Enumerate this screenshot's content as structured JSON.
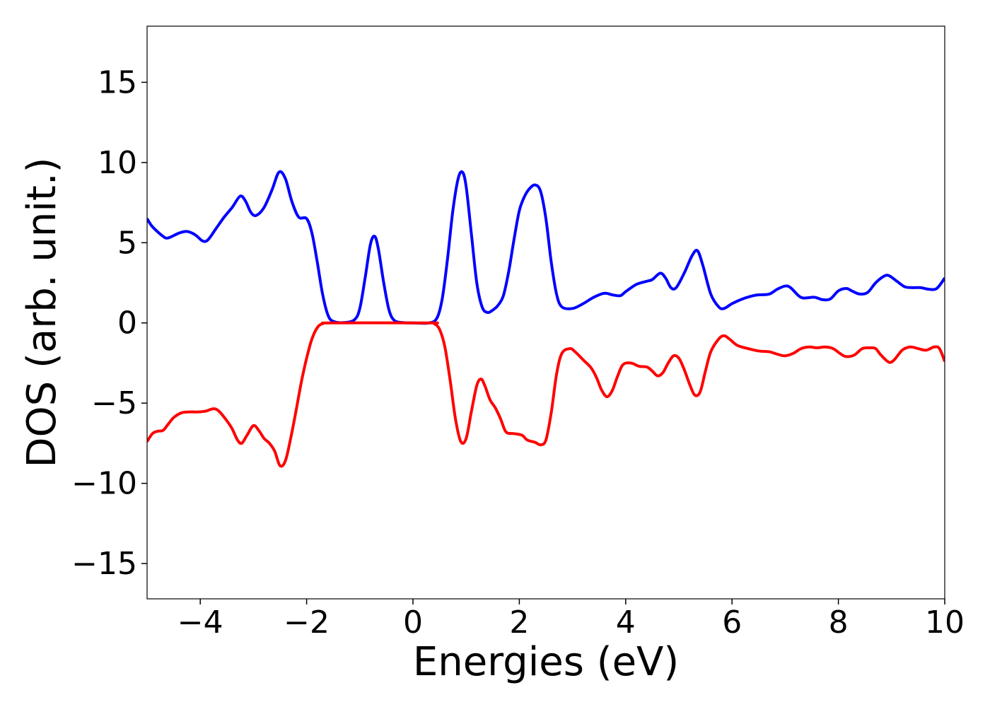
{
  "chart_data": {
    "type": "line",
    "title": "",
    "xlabel": "Energies (eV)",
    "ylabel": "DOS (arb. unit.)",
    "xlim": [
      -5,
      10
    ],
    "ylim": [
      -17.2,
      18.5
    ],
    "xticks": [
      -4,
      -2,
      0,
      2,
      4,
      6,
      8,
      10
    ],
    "xtick_labels": [
      "−4",
      "−2",
      "0",
      "2",
      "4",
      "6",
      "8",
      "10"
    ],
    "yticks": [
      -15,
      -10,
      -5,
      0,
      5,
      10,
      15
    ],
    "ytick_labels": [
      "−15",
      "−10",
      "−5",
      "0",
      "5",
      "10",
      "15"
    ],
    "grid": false,
    "legend": "none",
    "series": [
      {
        "color": "#0000ff",
        "points": [
          [
            -5.0,
            6.5
          ],
          [
            -4.9,
            6.0
          ],
          [
            -4.7,
            5.4
          ],
          [
            -4.6,
            5.3
          ],
          [
            -4.4,
            5.6
          ],
          [
            -4.25,
            5.7
          ],
          [
            -4.1,
            5.5
          ],
          [
            -3.95,
            5.1
          ],
          [
            -3.85,
            5.2
          ],
          [
            -3.7,
            5.9
          ],
          [
            -3.55,
            6.6
          ],
          [
            -3.4,
            7.2
          ],
          [
            -3.25,
            7.9
          ],
          [
            -3.15,
            7.6
          ],
          [
            -3.05,
            6.9
          ],
          [
            -2.95,
            6.7
          ],
          [
            -2.8,
            7.2
          ],
          [
            -2.65,
            8.3
          ],
          [
            -2.52,
            9.4
          ],
          [
            -2.4,
            9.0
          ],
          [
            -2.28,
            7.6
          ],
          [
            -2.15,
            6.6
          ],
          [
            -2.0,
            6.5
          ],
          [
            -1.9,
            5.6
          ],
          [
            -1.8,
            3.8
          ],
          [
            -1.7,
            1.8
          ],
          [
            -1.6,
            0.5
          ],
          [
            -1.5,
            0.1
          ],
          [
            -1.3,
            0.02
          ],
          [
            -1.1,
            0.2
          ],
          [
            -1.0,
            0.9
          ],
          [
            -0.9,
            2.8
          ],
          [
            -0.8,
            4.9
          ],
          [
            -0.72,
            5.4
          ],
          [
            -0.65,
            4.6
          ],
          [
            -0.55,
            2.5
          ],
          [
            -0.45,
            0.8
          ],
          [
            -0.35,
            0.15
          ],
          [
            -0.2,
            0.02
          ],
          [
            0.0,
            0.0
          ],
          [
            0.3,
            0.0
          ],
          [
            0.45,
            0.3
          ],
          [
            0.55,
            1.5
          ],
          [
            0.65,
            4.0
          ],
          [
            0.75,
            7.0
          ],
          [
            0.85,
            9.0
          ],
          [
            0.93,
            9.4
          ],
          [
            1.0,
            8.5
          ],
          [
            1.1,
            5.5
          ],
          [
            1.2,
            2.5
          ],
          [
            1.3,
            1.0
          ],
          [
            1.4,
            0.65
          ],
          [
            1.5,
            0.8
          ],
          [
            1.6,
            1.1
          ],
          [
            1.7,
            1.7
          ],
          [
            1.8,
            3.2
          ],
          [
            1.9,
            5.2
          ],
          [
            2.0,
            7.0
          ],
          [
            2.1,
            7.9
          ],
          [
            2.2,
            8.4
          ],
          [
            2.3,
            8.6
          ],
          [
            2.4,
            8.2
          ],
          [
            2.5,
            6.5
          ],
          [
            2.6,
            3.8
          ],
          [
            2.7,
            1.8
          ],
          [
            2.8,
            1.0
          ],
          [
            3.0,
            0.9
          ],
          [
            3.2,
            1.2
          ],
          [
            3.4,
            1.6
          ],
          [
            3.6,
            1.85
          ],
          [
            3.75,
            1.75
          ],
          [
            3.9,
            1.7
          ],
          [
            4.0,
            1.95
          ],
          [
            4.2,
            2.4
          ],
          [
            4.4,
            2.6
          ],
          [
            4.5,
            2.7
          ],
          [
            4.65,
            3.1
          ],
          [
            4.75,
            2.8
          ],
          [
            4.85,
            2.2
          ],
          [
            4.95,
            2.2
          ],
          [
            5.1,
            3.1
          ],
          [
            5.25,
            4.2
          ],
          [
            5.35,
            4.5
          ],
          [
            5.45,
            3.6
          ],
          [
            5.6,
            1.8
          ],
          [
            5.75,
            1.0
          ],
          [
            5.85,
            0.9
          ],
          [
            6.0,
            1.2
          ],
          [
            6.2,
            1.5
          ],
          [
            6.4,
            1.7
          ],
          [
            6.5,
            1.75
          ],
          [
            6.7,
            1.8
          ],
          [
            6.85,
            2.1
          ],
          [
            7.0,
            2.3
          ],
          [
            7.1,
            2.2
          ],
          [
            7.25,
            1.7
          ],
          [
            7.35,
            1.55
          ],
          [
            7.55,
            1.6
          ],
          [
            7.7,
            1.45
          ],
          [
            7.85,
            1.5
          ],
          [
            8.0,
            2.0
          ],
          [
            8.15,
            2.15
          ],
          [
            8.25,
            2.0
          ],
          [
            8.4,
            1.8
          ],
          [
            8.55,
            1.9
          ],
          [
            8.7,
            2.5
          ],
          [
            8.85,
            2.9
          ],
          [
            8.95,
            2.95
          ],
          [
            9.1,
            2.6
          ],
          [
            9.25,
            2.25
          ],
          [
            9.4,
            2.2
          ],
          [
            9.55,
            2.2
          ],
          [
            9.7,
            2.1
          ],
          [
            9.85,
            2.15
          ],
          [
            10.0,
            2.8
          ]
        ]
      },
      {
        "color": "#ff0000",
        "points": [
          [
            -5.0,
            -7.4
          ],
          [
            -4.9,
            -6.9
          ],
          [
            -4.8,
            -6.75
          ],
          [
            -4.7,
            -6.7
          ],
          [
            -4.6,
            -6.3
          ],
          [
            -4.5,
            -5.9
          ],
          [
            -4.35,
            -5.6
          ],
          [
            -4.2,
            -5.55
          ],
          [
            -4.05,
            -5.55
          ],
          [
            -3.9,
            -5.5
          ],
          [
            -3.75,
            -5.35
          ],
          [
            -3.65,
            -5.5
          ],
          [
            -3.5,
            -6.1
          ],
          [
            -3.4,
            -6.6
          ],
          [
            -3.3,
            -7.3
          ],
          [
            -3.22,
            -7.5
          ],
          [
            -3.12,
            -7.0
          ],
          [
            -3.0,
            -6.4
          ],
          [
            -2.9,
            -6.7
          ],
          [
            -2.8,
            -7.2
          ],
          [
            -2.7,
            -7.5
          ],
          [
            -2.6,
            -8.0
          ],
          [
            -2.5,
            -8.9
          ],
          [
            -2.4,
            -8.6
          ],
          [
            -2.3,
            -7.2
          ],
          [
            -2.2,
            -5.5
          ],
          [
            -2.1,
            -3.7
          ],
          [
            -2.0,
            -2.2
          ],
          [
            -1.9,
            -1.0
          ],
          [
            -1.8,
            -0.3
          ],
          [
            -1.7,
            -0.05
          ],
          [
            -1.5,
            0.0
          ],
          [
            0.3,
            0.0
          ],
          [
            0.4,
            -0.05
          ],
          [
            0.5,
            -0.4
          ],
          [
            0.6,
            -1.5
          ],
          [
            0.7,
            -3.6
          ],
          [
            0.8,
            -6.0
          ],
          [
            0.9,
            -7.4
          ],
          [
            1.0,
            -7.2
          ],
          [
            1.1,
            -5.5
          ],
          [
            1.2,
            -3.9
          ],
          [
            1.28,
            -3.5
          ],
          [
            1.35,
            -3.9
          ],
          [
            1.45,
            -4.8
          ],
          [
            1.55,
            -5.3
          ],
          [
            1.65,
            -6.0
          ],
          [
            1.75,
            -6.8
          ],
          [
            1.9,
            -6.9
          ],
          [
            2.05,
            -7.0
          ],
          [
            2.15,
            -7.3
          ],
          [
            2.3,
            -7.45
          ],
          [
            2.4,
            -7.6
          ],
          [
            2.5,
            -7.3
          ],
          [
            2.6,
            -5.6
          ],
          [
            2.7,
            -3.2
          ],
          [
            2.8,
            -1.9
          ],
          [
            2.95,
            -1.6
          ],
          [
            3.05,
            -1.8
          ],
          [
            3.2,
            -2.3
          ],
          [
            3.35,
            -2.8
          ],
          [
            3.45,
            -3.4
          ],
          [
            3.55,
            -4.2
          ],
          [
            3.65,
            -4.6
          ],
          [
            3.75,
            -4.2
          ],
          [
            3.85,
            -3.3
          ],
          [
            3.95,
            -2.6
          ],
          [
            4.1,
            -2.5
          ],
          [
            4.25,
            -2.7
          ],
          [
            4.4,
            -2.75
          ],
          [
            4.5,
            -3.0
          ],
          [
            4.6,
            -3.3
          ],
          [
            4.7,
            -3.1
          ],
          [
            4.8,
            -2.5
          ],
          [
            4.9,
            -2.05
          ],
          [
            5.0,
            -2.2
          ],
          [
            5.1,
            -2.9
          ],
          [
            5.2,
            -3.8
          ],
          [
            5.3,
            -4.5
          ],
          [
            5.4,
            -4.3
          ],
          [
            5.5,
            -3.0
          ],
          [
            5.6,
            -1.8
          ],
          [
            5.75,
            -1.0
          ],
          [
            5.85,
            -0.8
          ],
          [
            5.95,
            -1.0
          ],
          [
            6.1,
            -1.4
          ],
          [
            6.3,
            -1.6
          ],
          [
            6.5,
            -1.75
          ],
          [
            6.7,
            -1.8
          ],
          [
            6.85,
            -1.95
          ],
          [
            7.0,
            -2.05
          ],
          [
            7.15,
            -1.9
          ],
          [
            7.3,
            -1.6
          ],
          [
            7.45,
            -1.5
          ],
          [
            7.6,
            -1.55
          ],
          [
            7.75,
            -1.5
          ],
          [
            7.9,
            -1.6
          ],
          [
            8.05,
            -1.95
          ],
          [
            8.15,
            -2.1
          ],
          [
            8.3,
            -2.0
          ],
          [
            8.45,
            -1.6
          ],
          [
            8.6,
            -1.55
          ],
          [
            8.7,
            -1.6
          ],
          [
            8.8,
            -2.0
          ],
          [
            8.95,
            -2.45
          ],
          [
            9.05,
            -2.3
          ],
          [
            9.2,
            -1.7
          ],
          [
            9.35,
            -1.5
          ],
          [
            9.5,
            -1.6
          ],
          [
            9.65,
            -1.7
          ],
          [
            9.8,
            -1.5
          ],
          [
            9.9,
            -1.6
          ],
          [
            10.0,
            -2.4
          ]
        ]
      }
    ]
  }
}
